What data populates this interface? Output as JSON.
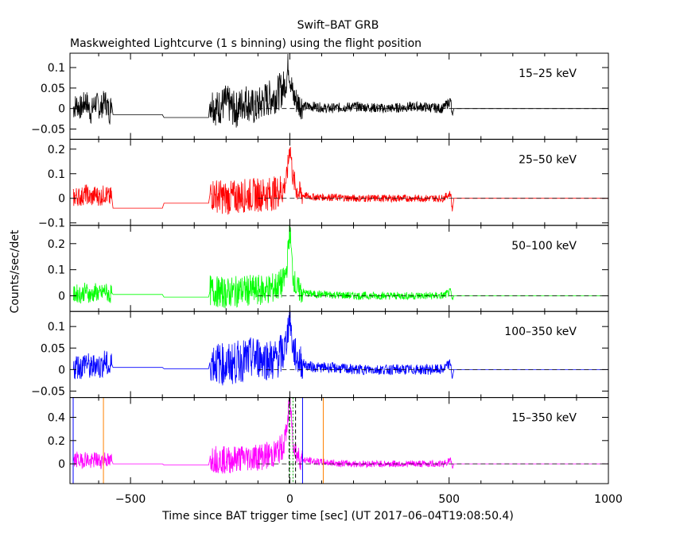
{
  "title": "Swift–BAT GRB",
  "subtitle": "Maskweighted Lightcurve (1 s binning) using the flight position",
  "ylabel": "Counts/sec/det",
  "xlabel": "Time since BAT trigger time [sec] (UT 2017–06–04T19:08:50.4)",
  "chart_data": {
    "type": "line",
    "xlim": [
      -690,
      1000
    ],
    "xticks": [
      -500,
      0,
      500,
      1000
    ],
    "xtick_labels": [
      "−500",
      "0",
      "500",
      "1000"
    ],
    "panels": [
      {
        "name": "15–25 keV",
        "color": "#000000",
        "ylim": [
          -0.075,
          0.135
        ],
        "yticks": [
          0.1,
          0.05,
          0,
          -0.05
        ],
        "ytick_labels": [
          "0.1",
          "0.05",
          "0",
          "−0.05"
        ],
        "series": {
          "x": [
            -680,
            -670,
            -655,
            -640,
            -625,
            -610,
            -595,
            -580,
            -565,
            -560,
            -555,
            -400,
            -395,
            -255,
            -250,
            -230,
            -200,
            -170,
            -140,
            -110,
            -80,
            -50,
            -20,
            -10,
            -5,
            0,
            5,
            10,
            20,
            30,
            50,
            80,
            120,
            200,
            300,
            400,
            480,
            505,
            510,
            515,
            1000
          ],
          "y": [
            0.0,
            0.01,
            0.0,
            0.02,
            -0.01,
            0.015,
            0.0,
            0.02,
            -0.01,
            0.015,
            -0.015,
            -0.015,
            -0.022,
            -0.022,
            0.02,
            0.0,
            0.015,
            -0.005,
            0.02,
            0.0,
            0.02,
            0.03,
            0.05,
            0.07,
            0.11,
            0.08,
            0.06,
            0.03,
            0.02,
            0.01,
            0.005,
            0.005,
            0.0,
            0.005,
            0.0,
            0.005,
            0.0,
            0.02,
            -0.02,
            0.0,
            0.0
          ]
        },
        "noise": [
          {
            "from": -680,
            "to": -560,
            "amp": 0.03
          },
          {
            "from": -250,
            "to": -20,
            "amp": 0.045
          },
          {
            "from": -20,
            "to": 40,
            "amp": 0.035
          },
          {
            "from": 40,
            "to": 510,
            "amp": 0.012
          }
        ]
      },
      {
        "name": "25–50 keV",
        "color": "#ff0000",
        "ylim": [
          -0.11,
          0.24
        ],
        "yticks": [
          0.2,
          0.1,
          0,
          -0.1
        ],
        "ytick_labels": [
          "0.2",
          "0.1",
          "0",
          "−0.1"
        ],
        "series": {
          "x": [
            -680,
            -670,
            -655,
            -640,
            -625,
            -610,
            -595,
            -580,
            -565,
            -560,
            -555,
            -400,
            -395,
            -255,
            -250,
            -200,
            -150,
            -100,
            -50,
            -20,
            -10,
            -5,
            0,
            5,
            10,
            20,
            30,
            50,
            80,
            120,
            200,
            300,
            400,
            480,
            505,
            510,
            515,
            1000
          ],
          "y": [
            0.0,
            0.01,
            0.005,
            0.02,
            0.0,
            0.015,
            0.005,
            0.02,
            0.0,
            0.015,
            -0.04,
            -0.04,
            -0.02,
            -0.02,
            0.02,
            0.0,
            0.01,
            0.015,
            0.02,
            0.04,
            0.08,
            0.14,
            0.22,
            0.15,
            0.08,
            0.04,
            0.02,
            0.01,
            0.005,
            0.005,
            0.0,
            0.0,
            0.0,
            0.0,
            0.02,
            -0.05,
            0.0,
            0.0
          ]
        },
        "noise": [
          {
            "from": -680,
            "to": -560,
            "amp": 0.04
          },
          {
            "from": -250,
            "to": -20,
            "amp": 0.07
          },
          {
            "from": -20,
            "to": 40,
            "amp": 0.05
          },
          {
            "from": 40,
            "to": 510,
            "amp": 0.015
          }
        ]
      },
      {
        "name": "50–100 keV",
        "color": "#00ff00",
        "ylim": [
          -0.06,
          0.27
        ],
        "yticks": [
          0.2,
          0.1,
          0
        ],
        "ytick_labels": [
          "0.2",
          "0.1",
          "0"
        ],
        "series": {
          "x": [
            -680,
            -670,
            -655,
            -640,
            -625,
            -610,
            -595,
            -580,
            -565,
            -560,
            -555,
            -400,
            -395,
            -255,
            -250,
            -200,
            -150,
            -100,
            -50,
            -20,
            -10,
            -5,
            0,
            5,
            10,
            20,
            30,
            50,
            80,
            120,
            200,
            300,
            400,
            480,
            505,
            510,
            515,
            1000
          ],
          "y": [
            0.0,
            0.01,
            0.005,
            0.02,
            0.0,
            0.015,
            0.005,
            0.02,
            0.0,
            0.015,
            0.005,
            0.005,
            -0.005,
            -0.005,
            0.02,
            0.01,
            0.02,
            0.02,
            0.03,
            0.05,
            0.1,
            0.18,
            0.26,
            0.16,
            0.08,
            0.03,
            0.02,
            0.01,
            0.005,
            0.005,
            0.0,
            0.0,
            0.0,
            0.0,
            0.015,
            -0.02,
            0.0,
            0.0
          ]
        },
        "noise": [
          {
            "from": -680,
            "to": -560,
            "amp": 0.035
          },
          {
            "from": -250,
            "to": -20,
            "amp": 0.06
          },
          {
            "from": -20,
            "to": 40,
            "amp": 0.05
          },
          {
            "from": 40,
            "to": 510,
            "amp": 0.015
          }
        ]
      },
      {
        "name": "100–350 keV",
        "color": "#0000ff",
        "ylim": [
          -0.065,
          0.135
        ],
        "yticks": [
          0.1,
          0.05,
          0,
          -0.05
        ],
        "ytick_labels": [
          "0.1",
          "0.05",
          "0",
          "−0.05"
        ],
        "series": {
          "x": [
            -680,
            -670,
            -655,
            -640,
            -625,
            -610,
            -595,
            -580,
            -565,
            -560,
            -555,
            -400,
            -395,
            -255,
            -250,
            -200,
            -150,
            -100,
            -50,
            -20,
            -10,
            -5,
            0,
            5,
            10,
            20,
            30,
            50,
            80,
            120,
            200,
            300,
            400,
            480,
            505,
            510,
            515,
            1000
          ],
          "y": [
            0.0,
            0.01,
            0.005,
            0.02,
            0.0,
            0.015,
            0.005,
            0.02,
            0.0,
            0.015,
            0.005,
            0.005,
            0.002,
            0.002,
            0.02,
            0.01,
            0.02,
            0.03,
            0.02,
            0.04,
            0.07,
            0.1,
            0.13,
            0.08,
            0.05,
            0.03,
            0.02,
            0.01,
            0.005,
            0.005,
            0.0,
            0.0,
            0.0,
            0.0,
            0.015,
            -0.02,
            0.0,
            0.0
          ]
        },
        "noise": [
          {
            "from": -680,
            "to": -560,
            "amp": 0.03
          },
          {
            "from": -250,
            "to": -20,
            "amp": 0.05
          },
          {
            "from": -20,
            "to": 40,
            "amp": 0.04
          },
          {
            "from": 40,
            "to": 510,
            "amp": 0.012
          }
        ]
      },
      {
        "name": "15–350 keV",
        "color": "#ff00ff",
        "ylim": [
          -0.17,
          0.57
        ],
        "yticks": [
          0.4,
          0.2,
          0
        ],
        "ytick_labels": [
          "0.4",
          "0.2",
          "0"
        ],
        "series": {
          "x": [
            -680,
            -670,
            -655,
            -640,
            -625,
            -610,
            -595,
            -580,
            -565,
            -560,
            -555,
            -400,
            -395,
            -255,
            -250,
            -200,
            -150,
            -100,
            -50,
            -20,
            -10,
            -5,
            0,
            5,
            10,
            20,
            30,
            50,
            80,
            120,
            200,
            300,
            400,
            480,
            505,
            510,
            515,
            1000
          ],
          "y": [
            0.02,
            0.04,
            0.02,
            0.05,
            0.01,
            0.04,
            0.02,
            0.05,
            0.01,
            0.04,
            0.0,
            0.0,
            -0.01,
            -0.01,
            0.05,
            0.03,
            0.05,
            0.06,
            0.08,
            0.15,
            0.3,
            0.42,
            0.55,
            0.4,
            0.2,
            0.1,
            0.05,
            0.03,
            0.02,
            0.01,
            0.0,
            0.0,
            0.0,
            0.0,
            0.03,
            -0.05,
            0.0,
            0.0
          ]
        },
        "noise": [
          {
            "from": -680,
            "to": -560,
            "amp": 0.07
          },
          {
            "from": -250,
            "to": -20,
            "amp": 0.12
          },
          {
            "from": -20,
            "to": 40,
            "amp": 0.1
          },
          {
            "from": 40,
            "to": 510,
            "amp": 0.03
          }
        ],
        "markers": [
          {
            "x": -680,
            "color": "#0000ff",
            "style": "solid"
          },
          {
            "x": -585,
            "color": "#ff8000",
            "style": "solid"
          },
          {
            "x": -2,
            "color": "#000000",
            "style": "dashed"
          },
          {
            "x": 18,
            "color": "#000000",
            "style": "dashed"
          },
          {
            "x": 0,
            "color": "#00aa00",
            "style": "dotted"
          },
          {
            "x": 10,
            "color": "#00aa00",
            "style": "dotted"
          },
          {
            "x": 40,
            "color": "#0000ff",
            "style": "solid"
          },
          {
            "x": 105,
            "color": "#ff8000",
            "style": "solid"
          }
        ]
      }
    ]
  }
}
